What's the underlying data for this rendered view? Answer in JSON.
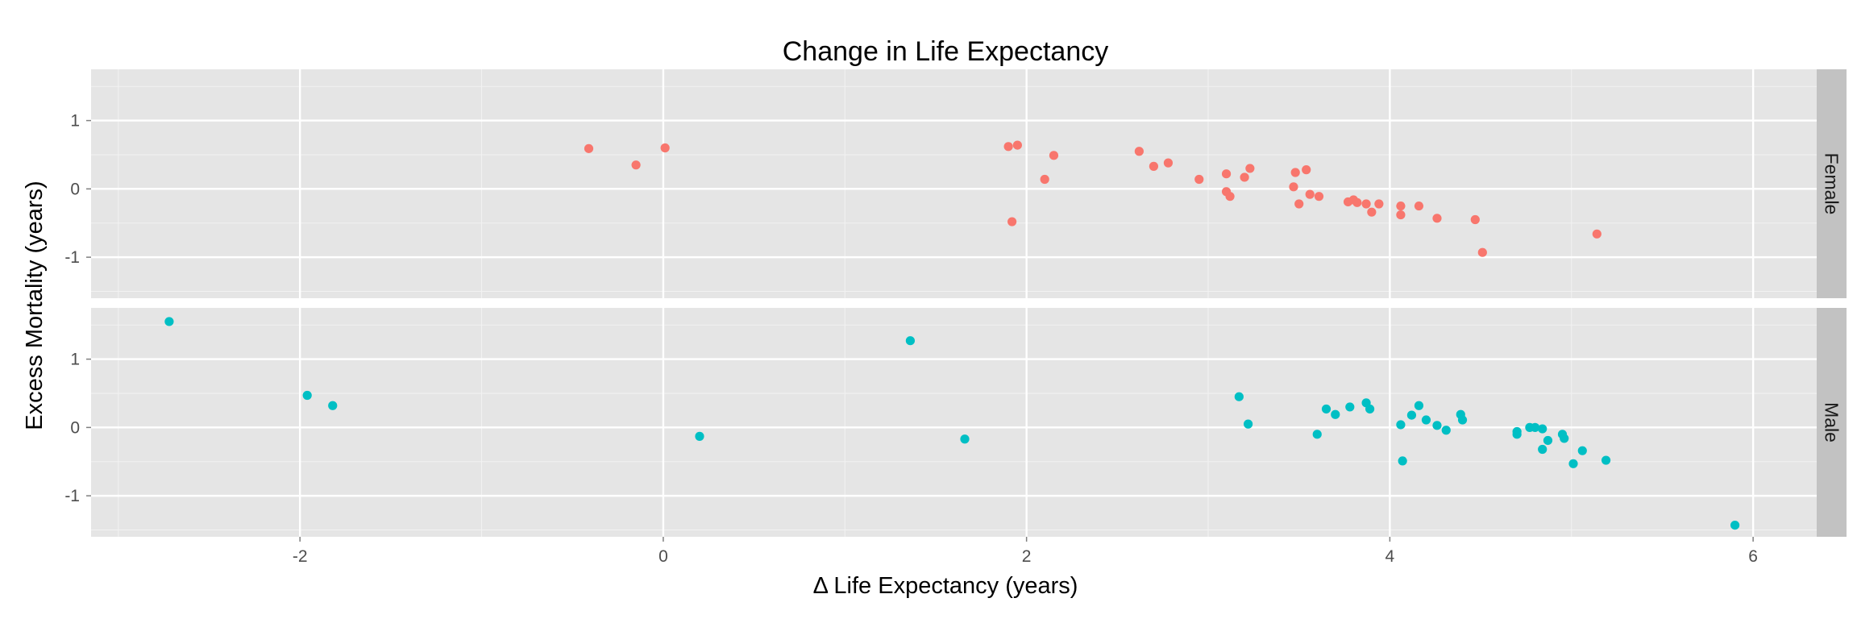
{
  "chart_data": {
    "type": "scatter",
    "title": "Change in Life Expectancy",
    "xlabel": "Δ Life Expectancy (years)",
    "ylabel": "Excess Mortality (years)",
    "xlim": [
      -3.15,
      6.35
    ],
    "ylim": [
      -1.6,
      1.75
    ],
    "x_ticks": [
      -2,
      0,
      2,
      4,
      6
    ],
    "x_tick_labels": [
      "-2",
      "0",
      "2",
      "4",
      "6"
    ],
    "y_ticks": [
      -1,
      0,
      1
    ],
    "y_tick_labels": [
      "-1",
      "0",
      "1"
    ],
    "grid": true,
    "legend": "none",
    "panels": [
      {
        "label": "Female",
        "color": "#F8766D",
        "points": [
          [
            -0.41,
            0.59
          ],
          [
            -0.15,
            0.35
          ],
          [
            0.01,
            0.6
          ],
          [
            1.9,
            0.62
          ],
          [
            1.95,
            0.64
          ],
          [
            1.92,
            -0.48
          ],
          [
            2.1,
            0.14
          ],
          [
            2.15,
            0.49
          ],
          [
            2.62,
            0.55
          ],
          [
            2.7,
            0.33
          ],
          [
            2.78,
            0.38
          ],
          [
            2.95,
            0.14
          ],
          [
            3.1,
            0.22
          ],
          [
            3.1,
            -0.04
          ],
          [
            3.12,
            -0.11
          ],
          [
            3.2,
            0.17
          ],
          [
            3.23,
            0.3
          ],
          [
            3.47,
            0.03
          ],
          [
            3.48,
            0.24
          ],
          [
            3.5,
            -0.22
          ],
          [
            3.54,
            0.28
          ],
          [
            3.56,
            -0.08
          ],
          [
            3.61,
            -0.11
          ],
          [
            3.77,
            -0.19
          ],
          [
            3.8,
            -0.16
          ],
          [
            3.82,
            -0.2
          ],
          [
            3.87,
            -0.22
          ],
          [
            3.9,
            -0.34
          ],
          [
            3.94,
            -0.22
          ],
          [
            4.06,
            -0.25
          ],
          [
            4.06,
            -0.38
          ],
          [
            4.16,
            -0.25
          ],
          [
            4.26,
            -0.43
          ],
          [
            4.47,
            -0.45
          ],
          [
            4.51,
            -0.93
          ],
          [
            5.14,
            -0.66
          ]
        ]
      },
      {
        "label": "Male",
        "color": "#00BFC4",
        "points": [
          [
            -2.72,
            1.55
          ],
          [
            -1.96,
            0.47
          ],
          [
            -1.82,
            0.32
          ],
          [
            0.2,
            -0.13
          ],
          [
            1.36,
            1.27
          ],
          [
            1.66,
            -0.17
          ],
          [
            3.17,
            0.45
          ],
          [
            3.22,
            0.05
          ],
          [
            3.6,
            -0.1
          ],
          [
            3.65,
            0.27
          ],
          [
            3.7,
            0.19
          ],
          [
            3.78,
            0.3
          ],
          [
            3.87,
            0.36
          ],
          [
            3.89,
            0.27
          ],
          [
            4.06,
            0.04
          ],
          [
            4.07,
            -0.49
          ],
          [
            4.12,
            0.18
          ],
          [
            4.16,
            0.32
          ],
          [
            4.2,
            0.11
          ],
          [
            4.26,
            0.03
          ],
          [
            4.31,
            -0.04
          ],
          [
            4.39,
            0.19
          ],
          [
            4.4,
            0.11
          ],
          [
            4.7,
            -0.06
          ],
          [
            4.7,
            -0.1
          ],
          [
            4.77,
            0.0
          ],
          [
            4.8,
            0.0
          ],
          [
            4.84,
            -0.02
          ],
          [
            4.84,
            -0.32
          ],
          [
            4.87,
            -0.19
          ],
          [
            4.95,
            -0.1
          ],
          [
            4.96,
            -0.16
          ],
          [
            5.01,
            -0.53
          ],
          [
            5.06,
            -0.34
          ],
          [
            5.19,
            -0.48
          ],
          [
            5.9,
            -1.43
          ]
        ]
      }
    ]
  }
}
